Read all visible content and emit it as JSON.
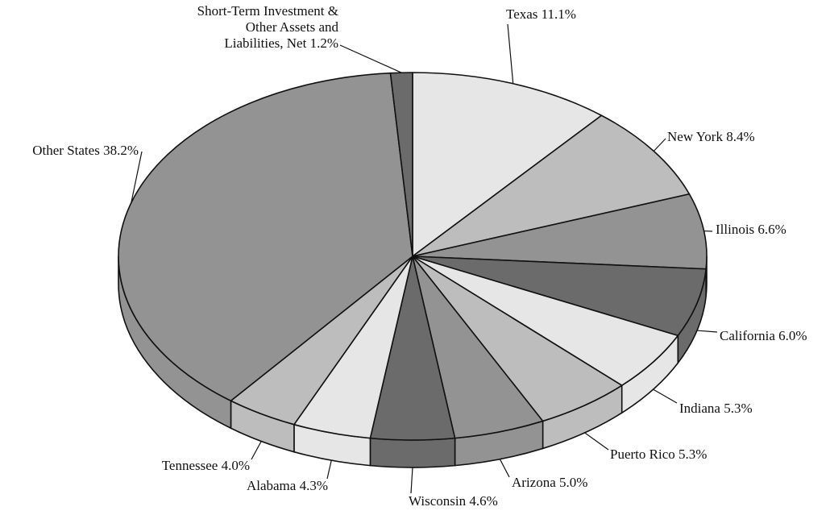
{
  "chart_data": {
    "type": "pie3d",
    "categories": [
      "Texas",
      "New York",
      "Illinois",
      "California",
      "Indiana",
      "Puerto Rico",
      "Arizona",
      "Wisconsin",
      "Alabama",
      "Tennessee",
      "Other States",
      "Short-Term Investment & Other Assets and Liabilities, Net"
    ],
    "values": [
      11.1,
      8.4,
      6.6,
      6.0,
      5.3,
      5.3,
      5.0,
      4.6,
      4.3,
      4.0,
      38.2,
      1.2
    ],
    "value_labels": [
      "11.1%",
      "8.4%",
      "6.6%",
      "6.0%",
      "5.3%",
      "5.3%",
      "5.0%",
      "4.6%",
      "4.3%",
      "4.0%",
      "38.2%",
      "1.2%"
    ],
    "colors": [
      "#e6e6e6",
      "#bdbdbd",
      "#939393",
      "#6b6b6b",
      "#e6e6e6",
      "#bdbdbd",
      "#939393",
      "#6b6b6b",
      "#e6e6e6",
      "#bdbdbd",
      "#939393",
      "#6b6b6b"
    ]
  }
}
